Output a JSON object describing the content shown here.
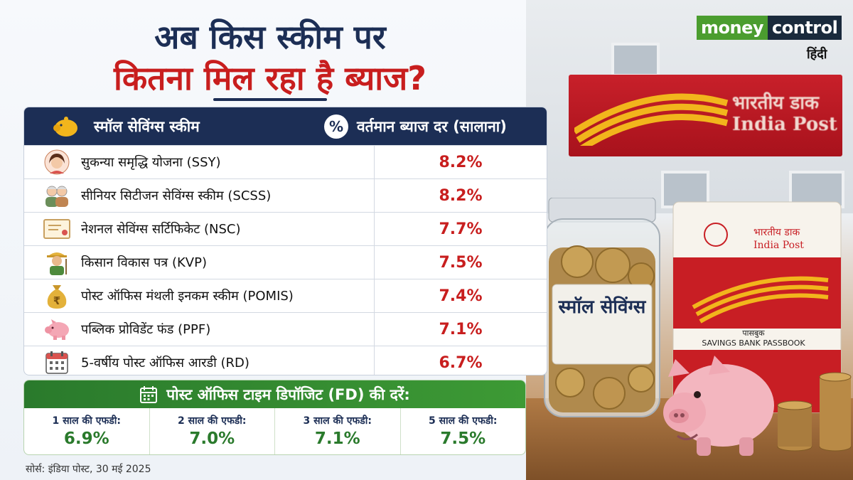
{
  "brand": {
    "name_part1": "money",
    "name_part2": "control",
    "sub": "हिंदी"
  },
  "title": {
    "line1": "अब किस स्कीम पर",
    "line2": "कितना मिल रहा है ब्याज?"
  },
  "table": {
    "col_scheme": "स्मॉल सेविंग्स स्कीम",
    "col_rate": "वर्तमान ब्याज दर (सालाना)",
    "rows": [
      {
        "icon": "girl-icon",
        "name": "सुकन्या समृद्धि योजना (SSY)",
        "rate": "8.2%"
      },
      {
        "icon": "senior-couple-icon",
        "name": "सीनियर सिटीजन सेविंग्स स्कीम (SCSS)",
        "rate": "8.2%"
      },
      {
        "icon": "certificate-icon",
        "name": "नेशनल सेविंग्स सर्टिफिकेट (NSC)",
        "rate": "7.7%"
      },
      {
        "icon": "farmer-icon",
        "name": "किसान विकास पत्र (KVP)",
        "rate": "7.5%"
      },
      {
        "icon": "money-bag-icon",
        "name": "पोस्ट ऑफिस मंथली इनकम स्कीम (POMIS)",
        "rate": "7.4%"
      },
      {
        "icon": "piggy-bank-icon",
        "name": "पब्लिक प्रोविडेंट फंड (PPF)",
        "rate": "7.1%"
      },
      {
        "icon": "calendar-icon",
        "name": "5-वर्षीय पोस्ट ऑफिस आरडी (RD)",
        "rate": "6.7%"
      }
    ]
  },
  "fd": {
    "title": "पोस्ट ऑफिस टाइम डिपॉजिट (FD) की दरें:",
    "items": [
      {
        "label": "1 साल की एफडी:",
        "value": "6.9%"
      },
      {
        "label": "2 साल की एफडी:",
        "value": "7.0%"
      },
      {
        "label": "3 साल की एफडी:",
        "value": "7.1%"
      },
      {
        "label": "5 साल की एफडी:",
        "value": "7.5%"
      }
    ]
  },
  "source": "सोर्स: इंडिया पोस्ट, 30 मई 2025",
  "photo": {
    "sign_hindi": "भारतीय डाक",
    "sign_english": "India Post",
    "jar_label": "स्मॉल सेविंग्स",
    "passbook_hindi": "भारतीय डाक",
    "passbook_english": "India Post",
    "passbook_title_hindi": "पासबुक",
    "passbook_title_english": "SAVINGS BANK PASSBOOK"
  },
  "colors": {
    "navy": "#1c2e55",
    "red": "#c81e1e",
    "green": "#2a7a2c"
  }
}
